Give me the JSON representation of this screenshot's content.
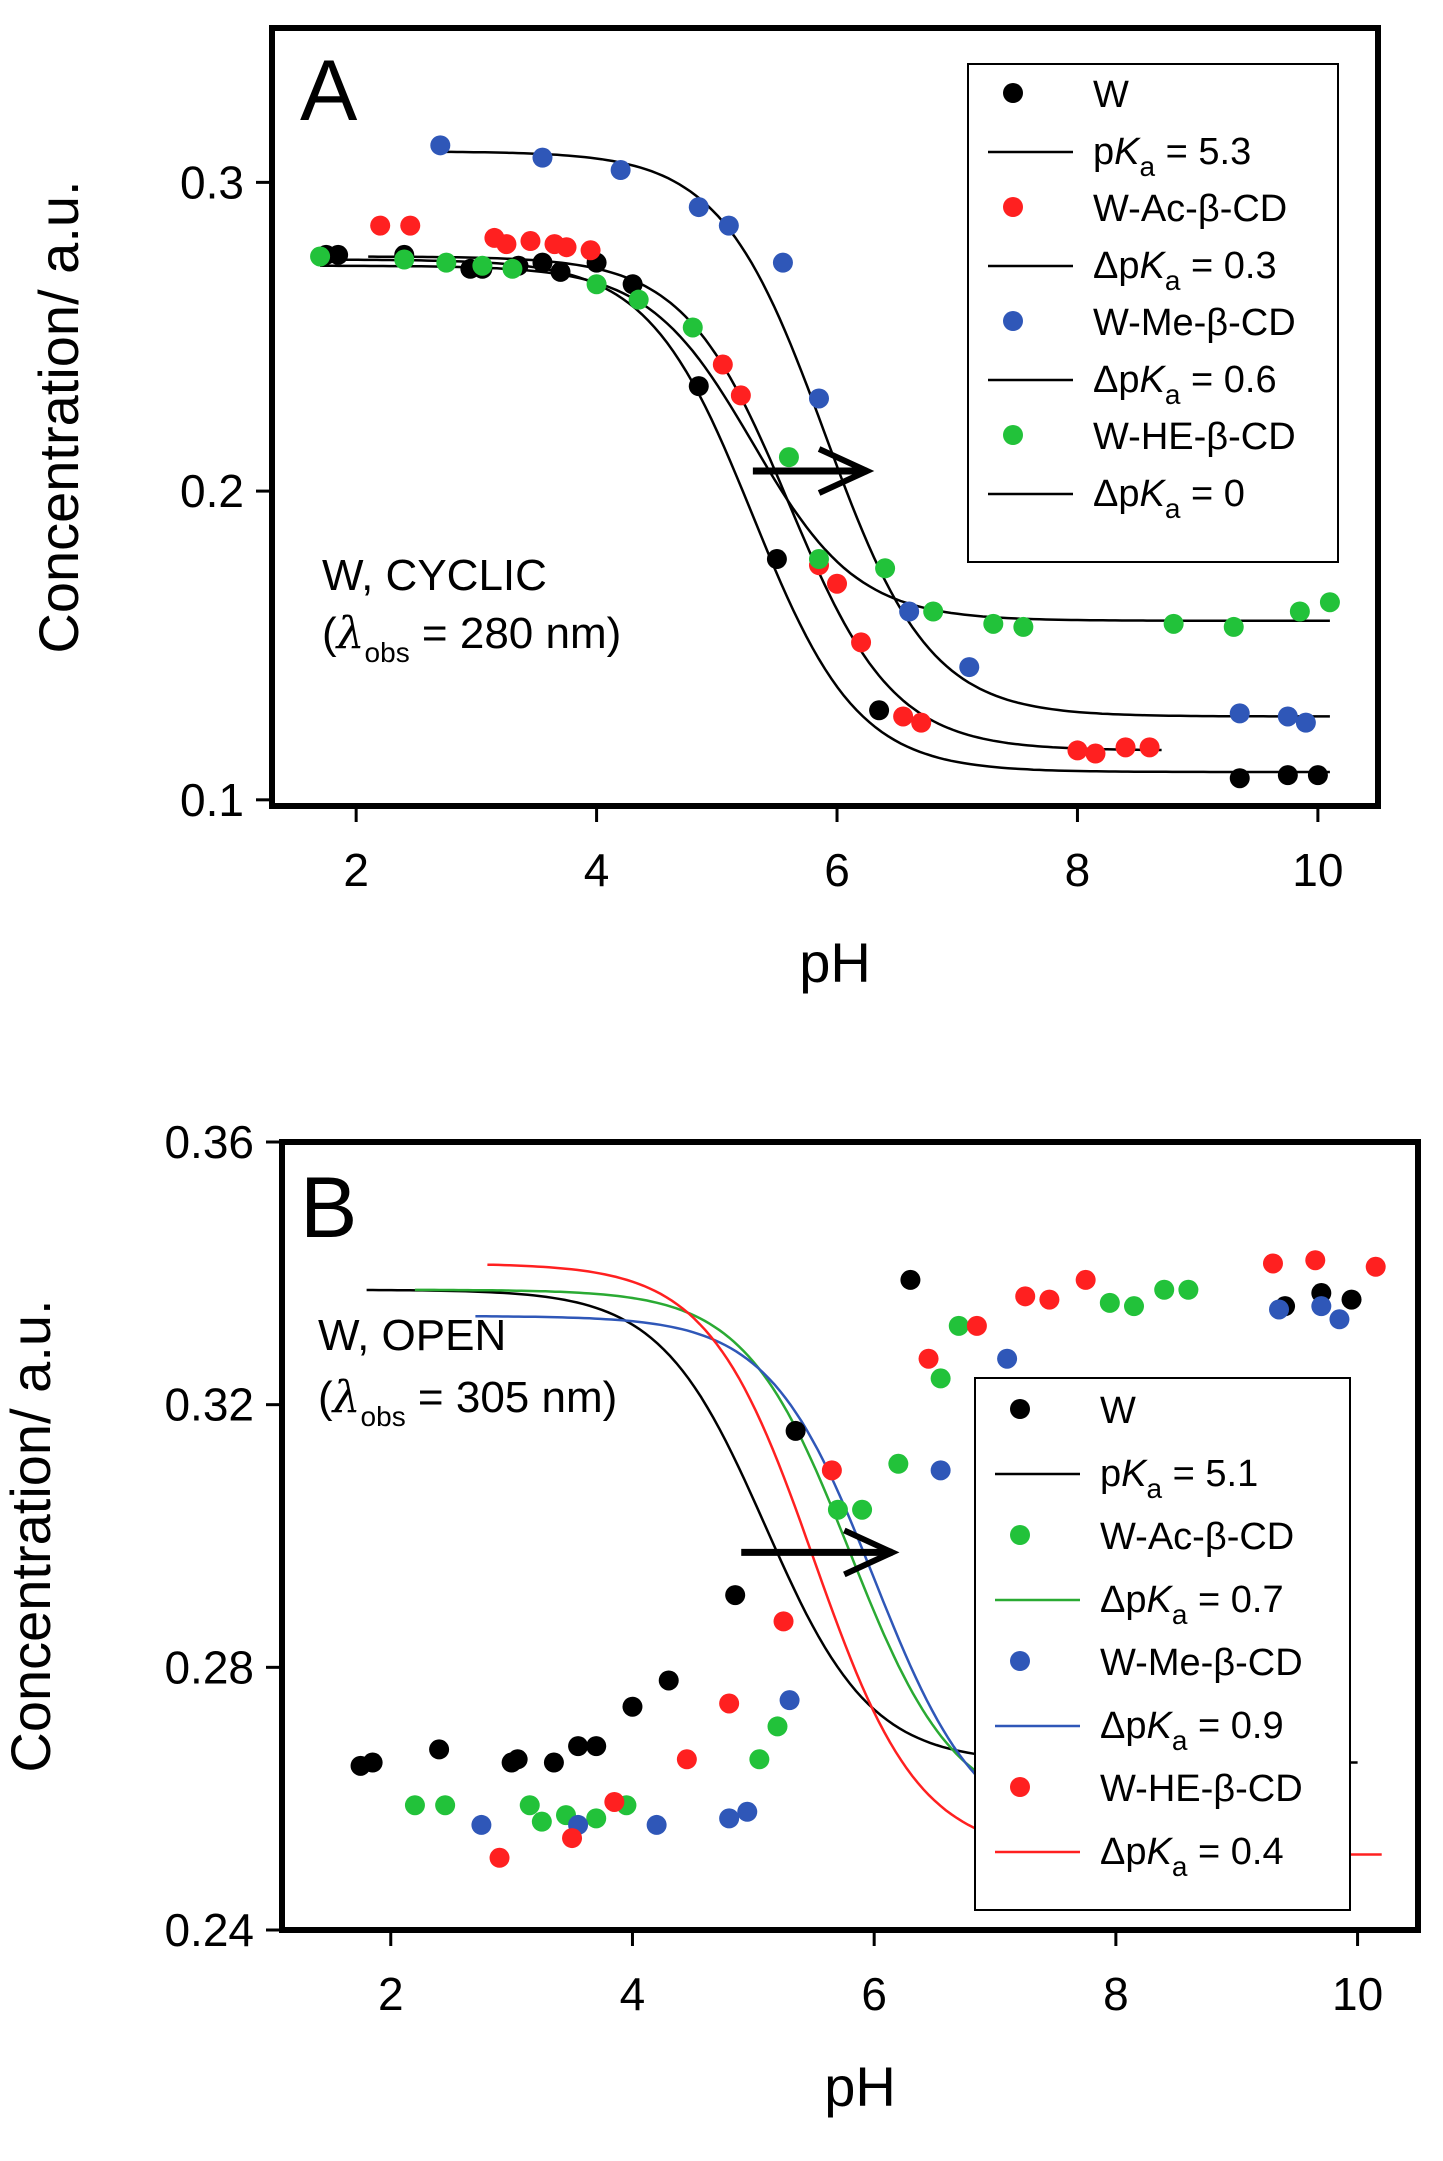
{
  "chart_data": [
    {
      "type": "scatter",
      "panel_label": "A",
      "xlabel": "pH",
      "ylabel": "Concentration/ a.u.",
      "xlim": [
        1.3,
        10.5
      ],
      "ylim": [
        0.098,
        0.35
      ],
      "xticks": [
        2,
        4,
        6,
        8,
        10
      ],
      "yticks": [
        0.1,
        0.2,
        0.3
      ],
      "ytick_labels": [
        "0.1",
        "0.2",
        "0.3"
      ],
      "grid": false,
      "legend_position": "top-right",
      "annotation": {
        "line1": "W, CYCLIC",
        "lambda_sym": "λ",
        "lambda_sub": "obs",
        "lambda_rest": "= 280 nm"
      },
      "arrow": {
        "from": [
          5.3,
          0.2065
        ],
        "to": [
          6.25,
          0.2065
        ]
      },
      "series": [
        {
          "name": "W",
          "color": "#000000",
          "fit_color": "#000000",
          "fit_label": {
            "prefix": "p",
            "italic": "K",
            "sub": "a",
            "suffix": " = 5.3"
          },
          "fit": {
            "top": 0.275,
            "bottom": 0.109,
            "pka": 5.3,
            "slope": 2.3,
            "x0": 1.7,
            "x1": 10.1
          },
          "points": [
            [
              1.75,
              0.2765
            ],
            [
              1.85,
              0.2765
            ],
            [
              2.4,
              0.2765
            ],
            [
              2.95,
              0.272
            ],
            [
              3.05,
              0.272
            ],
            [
              3.35,
              0.273
            ],
            [
              3.55,
              0.274
            ],
            [
              3.7,
              0.271
            ],
            [
              4.0,
              0.274
            ],
            [
              4.3,
              0.267
            ],
            [
              4.85,
              0.234
            ],
            [
              5.5,
              0.178
            ],
            [
              6.35,
              0.129
            ],
            [
              9.35,
              0.107
            ],
            [
              9.75,
              0.108
            ],
            [
              10.0,
              0.108
            ]
          ]
        },
        {
          "name": "W-Ac-β-CD",
          "color": "#ff2020",
          "fit_color": "#000000",
          "fit_label": {
            "prefix": "Δp",
            "italic": "K",
            "sub": "a",
            "suffix": " = 0.3"
          },
          "fit": {
            "top": 0.276,
            "bottom": 0.116,
            "pka": 5.6,
            "slope": 2.3,
            "x0": 2.1,
            "x1": 8.7
          },
          "points": [
            [
              2.2,
              0.286
            ],
            [
              2.45,
              0.286
            ],
            [
              3.15,
              0.282
            ],
            [
              3.25,
              0.28
            ],
            [
              3.45,
              0.281
            ],
            [
              3.65,
              0.28
            ],
            [
              3.75,
              0.279
            ],
            [
              3.95,
              0.278
            ],
            [
              5.05,
              0.241
            ],
            [
              5.2,
              0.231
            ],
            [
              5.85,
              0.176
            ],
            [
              6.0,
              0.17
            ],
            [
              6.2,
              0.151
            ],
            [
              6.55,
              0.127
            ],
            [
              6.7,
              0.125
            ],
            [
              8.0,
              0.116
            ],
            [
              8.15,
              0.115
            ],
            [
              8.4,
              0.117
            ],
            [
              8.6,
              0.117
            ]
          ]
        },
        {
          "name": "W-Me-β-CD",
          "color": "#2f57b8",
          "fit_color": "#000000",
          "fit_label": {
            "prefix": "Δp",
            "italic": "K",
            "sub": "a",
            "suffix": " = 0.6"
          },
          "fit": {
            "top": 0.31,
            "bottom": 0.127,
            "pka": 5.9,
            "slope": 2.3,
            "x0": 2.7,
            "x1": 10.1
          },
          "points": [
            [
              2.7,
              0.312
            ],
            [
              3.55,
              0.308
            ],
            [
              4.2,
              0.304
            ],
            [
              4.85,
              0.292
            ],
            [
              5.1,
              0.286
            ],
            [
              5.55,
              0.274
            ],
            [
              5.85,
              0.23
            ],
            [
              6.6,
              0.161
            ],
            [
              7.1,
              0.143
            ],
            [
              9.35,
              0.128
            ],
            [
              9.75,
              0.127
            ],
            [
              9.9,
              0.125
            ]
          ]
        },
        {
          "name": "W-HE-β-CD",
          "color": "#22c23a",
          "fit_color": "#000000",
          "fit_label": {
            "prefix": "Δp",
            "italic": "K",
            "sub": "a",
            "suffix": " = 0"
          },
          "fit": {
            "top": 0.273,
            "bottom": 0.158,
            "pka": 5.3,
            "slope": 2.3,
            "x0": 1.7,
            "x1": 10.1
          },
          "points": [
            [
              1.7,
              0.276
            ],
            [
              2.4,
              0.275
            ],
            [
              2.75,
              0.274
            ],
            [
              3.05,
              0.273
            ],
            [
              3.3,
              0.272
            ],
            [
              4.0,
              0.267
            ],
            [
              4.35,
              0.262
            ],
            [
              4.8,
              0.253
            ],
            [
              5.6,
              0.211
            ],
            [
              5.85,
              0.178
            ],
            [
              6.4,
              0.175
            ],
            [
              6.8,
              0.161
            ],
            [
              7.3,
              0.157
            ],
            [
              7.55,
              0.156
            ],
            [
              8.8,
              0.157
            ],
            [
              9.3,
              0.156
            ],
            [
              9.85,
              0.161
            ],
            [
              10.1,
              0.164
            ]
          ]
        }
      ]
    },
    {
      "type": "scatter",
      "panel_label": "B",
      "xlabel": "pH",
      "ylabel": "Concentration/ a.u.",
      "xlim": [
        1.1,
        10.5
      ],
      "ylim": [
        0.24,
        0.36
      ],
      "xticks": [
        2,
        4,
        6,
        8,
        10
      ],
      "yticks": [
        0.24,
        0.28,
        0.32,
        0.36
      ],
      "ytick_labels": [
        "0.24",
        "0.28",
        "0.32",
        "0.36"
      ],
      "grid": false,
      "legend_position": "bottom-right",
      "annotation": {
        "line1": "W, OPEN",
        "lambda_sym": "λ",
        "lambda_sub": "obs",
        "lambda_rest": "= 305 nm"
      },
      "arrow": {
        "from": [
          4.9,
          0.2975
        ],
        "to": [
          6.15,
          0.2975
        ]
      },
      "series": [
        {
          "name": "W",
          "color": "#000000",
          "fit_color": "#000000",
          "fit_label": {
            "prefix": "p",
            "italic": "K",
            "sub": "a",
            "suffix": " = 5.1"
          },
          "fit": {
            "top": 0.3375,
            "bottom": 0.2655,
            "pka": 5.1,
            "slope": 2.3,
            "x0": 1.8,
            "x1": 10.0
          },
          "points": [
            [
              1.75,
              0.265
            ],
            [
              1.85,
              0.2655
            ],
            [
              2.4,
              0.2675
            ],
            [
              3.0,
              0.2655
            ],
            [
              3.05,
              0.266
            ],
            [
              3.35,
              0.2655
            ],
            [
              3.55,
              0.268
            ],
            [
              3.7,
              0.268
            ],
            [
              4.0,
              0.274
            ],
            [
              4.3,
              0.278
            ],
            [
              4.85,
              0.291
            ],
            [
              5.35,
              0.316
            ],
            [
              6.3,
              0.339
            ],
            [
              9.4,
              0.335
            ],
            [
              9.7,
              0.337
            ],
            [
              9.95,
              0.336
            ]
          ]
        },
        {
          "name": "W-Ac-β-CD",
          "color": "#22c23a",
          "fit_color": "#2aaa33",
          "fit_label": {
            "prefix": "Δp",
            "italic": "K",
            "sub": "a",
            "suffix": " = 0.7"
          },
          "fit": {
            "top": 0.3375,
            "bottom": 0.2575,
            "pka": 5.8,
            "slope": 2.3,
            "x0": 2.2,
            "x1": 8.6
          },
          "points": [
            [
              2.2,
              0.259
            ],
            [
              2.45,
              0.259
            ],
            [
              3.15,
              0.259
            ],
            [
              3.25,
              0.2565
            ],
            [
              3.45,
              0.2575
            ],
            [
              3.7,
              0.257
            ],
            [
              3.95,
              0.259
            ],
            [
              5.05,
              0.266
            ],
            [
              5.2,
              0.271
            ],
            [
              5.7,
              0.304
            ],
            [
              5.9,
              0.304
            ],
            [
              6.2,
              0.311
            ],
            [
              6.55,
              0.324
            ],
            [
              6.7,
              0.332
            ],
            [
              7.95,
              0.3355
            ],
            [
              8.15,
              0.335
            ],
            [
              8.4,
              0.3375
            ],
            [
              8.6,
              0.3375
            ]
          ]
        },
        {
          "name": "W-Me-β-CD",
          "color": "#2f57b8",
          "fit_color": "#2f57b8",
          "fit_label": {
            "prefix": "Δp",
            "italic": "K",
            "sub": "a",
            "suffix": " = 0.9"
          },
          "fit": {
            "top": 0.3335,
            "bottom": 0.2535,
            "pka": 6.0,
            "slope": 2.3,
            "x0": 2.7,
            "x1": 9.9
          },
          "points": [
            [
              2.75,
              0.256
            ],
            [
              3.55,
              0.256
            ],
            [
              4.2,
              0.256
            ],
            [
              4.8,
              0.257
            ],
            [
              4.95,
              0.258
            ],
            [
              5.3,
              0.275
            ],
            [
              6.55,
              0.31
            ],
            [
              7.1,
              0.327
            ],
            [
              9.35,
              0.3345
            ],
            [
              9.7,
              0.335
            ],
            [
              9.85,
              0.333
            ]
          ]
        },
        {
          "name": "W-HE-β-CD",
          "color": "#ff2020",
          "fit_color": "#ff2020",
          "fit_label": {
            "prefix": "Δp",
            "italic": "K",
            "sub": "a",
            "suffix": " = 0.4"
          },
          "fit": {
            "top": 0.3415,
            "bottom": 0.2515,
            "pka": 5.5,
            "slope": 2.3,
            "x0": 2.8,
            "x1": 10.2
          },
          "points": [
            [
              2.9,
              0.251
            ],
            [
              3.5,
              0.254
            ],
            [
              3.85,
              0.2595
            ],
            [
              4.45,
              0.266
            ],
            [
              4.8,
              0.2745
            ],
            [
              5.25,
              0.287
            ],
            [
              5.65,
              0.31
            ],
            [
              6.45,
              0.327
            ],
            [
              6.85,
              0.332
            ],
            [
              7.25,
              0.3365
            ],
            [
              7.45,
              0.336
            ],
            [
              7.75,
              0.339
            ],
            [
              9.3,
              0.3415
            ],
            [
              9.65,
              0.342
            ],
            [
              10.15,
              0.341
            ]
          ]
        }
      ]
    }
  ]
}
